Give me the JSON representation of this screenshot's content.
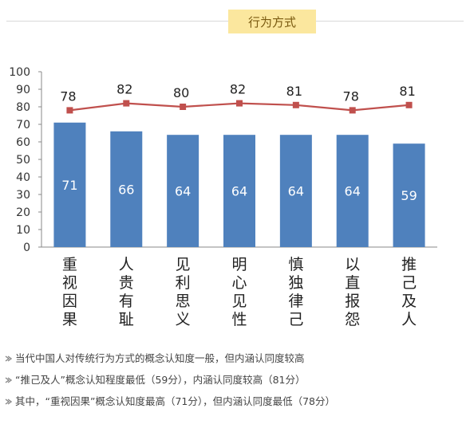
{
  "header": {
    "title": "行为方式"
  },
  "chart_data": {
    "type": "bar",
    "categories": [
      "重视因果",
      "人贵有耻",
      "见利思义",
      "明心见性",
      "慎独律己",
      "以直报怨",
      "推己及人"
    ],
    "series": [
      {
        "type": "bar",
        "values": [
          71,
          66,
          64,
          64,
          64,
          64,
          59
        ],
        "color": "#4f81bd"
      },
      {
        "type": "line",
        "values": [
          78,
          82,
          80,
          82,
          81,
          78,
          81
        ],
        "color": "#c0504d"
      }
    ],
    "yticks": [
      "0",
      "10",
      "20",
      "30",
      "40",
      "50",
      "60",
      "70",
      "80",
      "90",
      "100"
    ],
    "ylim": [
      0,
      100
    ],
    "grid": false
  },
  "notes": [
    "当代中国人对传统行为方式的概念认知度一般，但内涵认同度较高",
    "“推己及人”概念认知程度最低（59分），内涵认同度较高（81分）",
    "其中，“重视因果”概念认知度最高（71分），但内涵认同度最低（78分）"
  ]
}
